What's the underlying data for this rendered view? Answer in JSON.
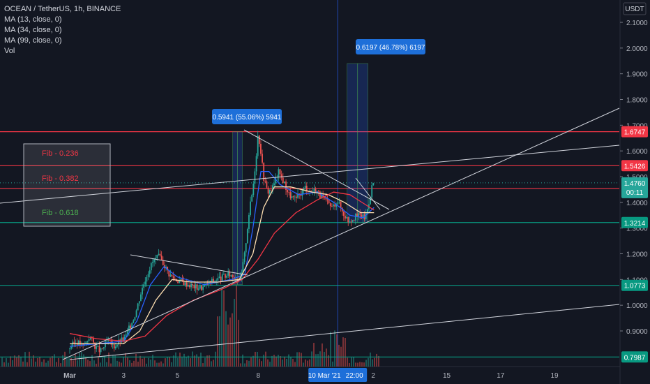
{
  "legend": {
    "title": "OCEAN / TetherUS, 1h, BINANCE",
    "ma1": "MA (13, close, 0)",
    "ma2": "MA (34, close, 0)",
    "ma3": "MA (99, close, 0)",
    "vol": "Vol"
  },
  "chart_data": {
    "type": "candlestick",
    "currency": "USDT",
    "y_ticks": [
      "2.1000",
      "2.0000",
      "1.9000",
      "1.8000",
      "1.7000",
      "1.6000",
      "1.5000",
      "1.4000",
      "1.3000",
      "1.2000",
      "1.1000",
      "1.0000",
      "0.9000"
    ],
    "y_tick_values": [
      2.1,
      2.0,
      1.9,
      1.8,
      1.7,
      1.6,
      1.5,
      1.4,
      1.3,
      1.2,
      1.1,
      1.0,
      0.9
    ],
    "x_ticks": [
      "Mar",
      "3",
      "5",
      "8",
      "15",
      "17",
      "19"
    ],
    "x_tick_days": [
      1,
      3,
      5,
      8,
      15,
      17,
      19
    ],
    "x_hidden_ticks": [
      "2"
    ],
    "crosshair_date": "10 Mar '21",
    "crosshair_time": "22:00",
    "ylim": [
      0.78,
      2.15
    ],
    "levels": [
      {
        "label": "1.6747",
        "value": 1.6747,
        "color": "#f23645"
      },
      {
        "label": "1.5426",
        "value": 1.5426,
        "color": "#f23645"
      },
      {
        "label": "1.4537",
        "value": 1.4537,
        "color": "#f23645"
      },
      {
        "label": "1.3214",
        "value": 1.3214,
        "color": "#089981"
      },
      {
        "label": "1.0773",
        "value": 1.0773,
        "color": "#089981"
      },
      {
        "label": "0.7987",
        "value": 0.7987,
        "color": "#089981"
      }
    ],
    "current_price": {
      "label": "1.4760",
      "value": 1.476,
      "countdown": "00:11",
      "color": "#26a69a"
    },
    "fib_box": {
      "labels": [
        "Fib - 0.236",
        "Fib - 0.382",
        "Fib - 0.618"
      ],
      "colors": [
        "#f23645",
        "#f23645",
        "#4caf50"
      ]
    },
    "measure_labels": [
      {
        "text": "0.5941 (55.06%) 5941",
        "day": 7.05,
        "from": 1.08,
        "to": 1.6747
      },
      {
        "text": "0.6197 (46.78%) 6197",
        "day": 11.3,
        "from": 1.3214,
        "to": 1.94
      }
    ],
    "price_path": [
      [
        0.0,
        0.83
      ],
      [
        0.3,
        0.86
      ],
      [
        0.55,
        0.84
      ],
      [
        0.8,
        0.88
      ],
      [
        1.0,
        0.84
      ],
      [
        1.2,
        0.82
      ],
      [
        1.45,
        0.86
      ],
      [
        1.7,
        0.84
      ],
      [
        1.9,
        0.86
      ],
      [
        2.1,
        0.87
      ],
      [
        2.3,
        0.92
      ],
      [
        2.5,
        0.97
      ],
      [
        2.7,
        1.05
      ],
      [
        2.85,
        1.1
      ],
      [
        3.0,
        1.14
      ],
      [
        3.15,
        1.17
      ],
      [
        3.35,
        1.19
      ],
      [
        3.55,
        1.16
      ],
      [
        3.75,
        1.12
      ],
      [
        4.0,
        1.1
      ],
      [
        4.25,
        1.09
      ],
      [
        4.5,
        1.08
      ],
      [
        4.75,
        1.07
      ],
      [
        5.0,
        1.07
      ],
      [
        5.25,
        1.09
      ],
      [
        5.5,
        1.1
      ],
      [
        5.75,
        1.11
      ],
      [
        6.0,
        1.12
      ],
      [
        6.2,
        1.11
      ],
      [
        6.4,
        1.1
      ],
      [
        6.55,
        1.2
      ],
      [
        6.7,
        1.35
      ],
      [
        6.85,
        1.45
      ],
      [
        6.95,
        1.55
      ],
      [
        7.05,
        1.67
      ],
      [
        7.15,
        1.6
      ],
      [
        7.25,
        1.5
      ],
      [
        7.4,
        1.44
      ],
      [
        7.6,
        1.46
      ],
      [
        7.8,
        1.52
      ],
      [
        8.0,
        1.48
      ],
      [
        8.2,
        1.43
      ],
      [
        8.4,
        1.41
      ],
      [
        8.6,
        1.43
      ],
      [
        8.8,
        1.46
      ],
      [
        9.0,
        1.44
      ],
      [
        9.2,
        1.45
      ],
      [
        9.4,
        1.42
      ],
      [
        9.6,
        1.4
      ],
      [
        9.8,
        1.38
      ],
      [
        10.0,
        1.41
      ],
      [
        10.2,
        1.36
      ],
      [
        10.4,
        1.33
      ],
      [
        10.6,
        1.34
      ],
      [
        10.8,
        1.35
      ],
      [
        11.0,
        1.34
      ],
      [
        11.1,
        1.37
      ],
      [
        11.2,
        1.42
      ],
      [
        11.3,
        1.476
      ]
    ],
    "series": [
      {
        "name": "MA (13, close, 0)",
        "color": "#2962ff",
        "values": [
          [
            0.0,
            0.84
          ],
          [
            1.0,
            0.85
          ],
          [
            2.0,
            0.86
          ],
          [
            2.5,
            0.94
          ],
          [
            3.0,
            1.08
          ],
          [
            3.5,
            1.15
          ],
          [
            4.0,
            1.11
          ],
          [
            5.0,
            1.08
          ],
          [
            6.0,
            1.1
          ],
          [
            6.5,
            1.12
          ],
          [
            6.8,
            1.3
          ],
          [
            7.1,
            1.52
          ],
          [
            7.4,
            1.52
          ],
          [
            7.8,
            1.47
          ],
          [
            8.5,
            1.43
          ],
          [
            9.2,
            1.44
          ],
          [
            9.8,
            1.4
          ],
          [
            10.4,
            1.35
          ],
          [
            10.9,
            1.34
          ],
          [
            11.3,
            1.38
          ]
        ]
      },
      {
        "name": "MA (34, close, 0)",
        "color": "#ffe0b2",
        "values": [
          [
            0.0,
            0.85
          ],
          [
            1.0,
            0.85
          ],
          [
            2.0,
            0.85
          ],
          [
            2.6,
            0.9
          ],
          [
            3.2,
            1.02
          ],
          [
            3.8,
            1.1
          ],
          [
            4.5,
            1.09
          ],
          [
            5.5,
            1.09
          ],
          [
            6.3,
            1.1
          ],
          [
            6.8,
            1.2
          ],
          [
            7.2,
            1.38
          ],
          [
            7.6,
            1.46
          ],
          [
            8.2,
            1.46
          ],
          [
            9.0,
            1.44
          ],
          [
            9.6,
            1.43
          ],
          [
            10.2,
            1.4
          ],
          [
            10.8,
            1.36
          ],
          [
            11.3,
            1.36
          ]
        ]
      },
      {
        "name": "MA (99, close, 0)",
        "color": "#f23645",
        "values": [
          [
            0.0,
            0.89
          ],
          [
            1.0,
            0.87
          ],
          [
            2.0,
            0.86
          ],
          [
            2.8,
            0.88
          ],
          [
            3.6,
            0.96
          ],
          [
            4.6,
            1.02
          ],
          [
            5.6,
            1.06
          ],
          [
            6.4,
            1.1
          ],
          [
            7.0,
            1.18
          ],
          [
            7.6,
            1.28
          ],
          [
            8.4,
            1.36
          ],
          [
            9.2,
            1.41
          ],
          [
            9.8,
            1.44
          ],
          [
            10.4,
            1.43
          ],
          [
            11.0,
            1.39
          ],
          [
            11.3,
            1.37
          ]
        ]
      }
    ]
  }
}
